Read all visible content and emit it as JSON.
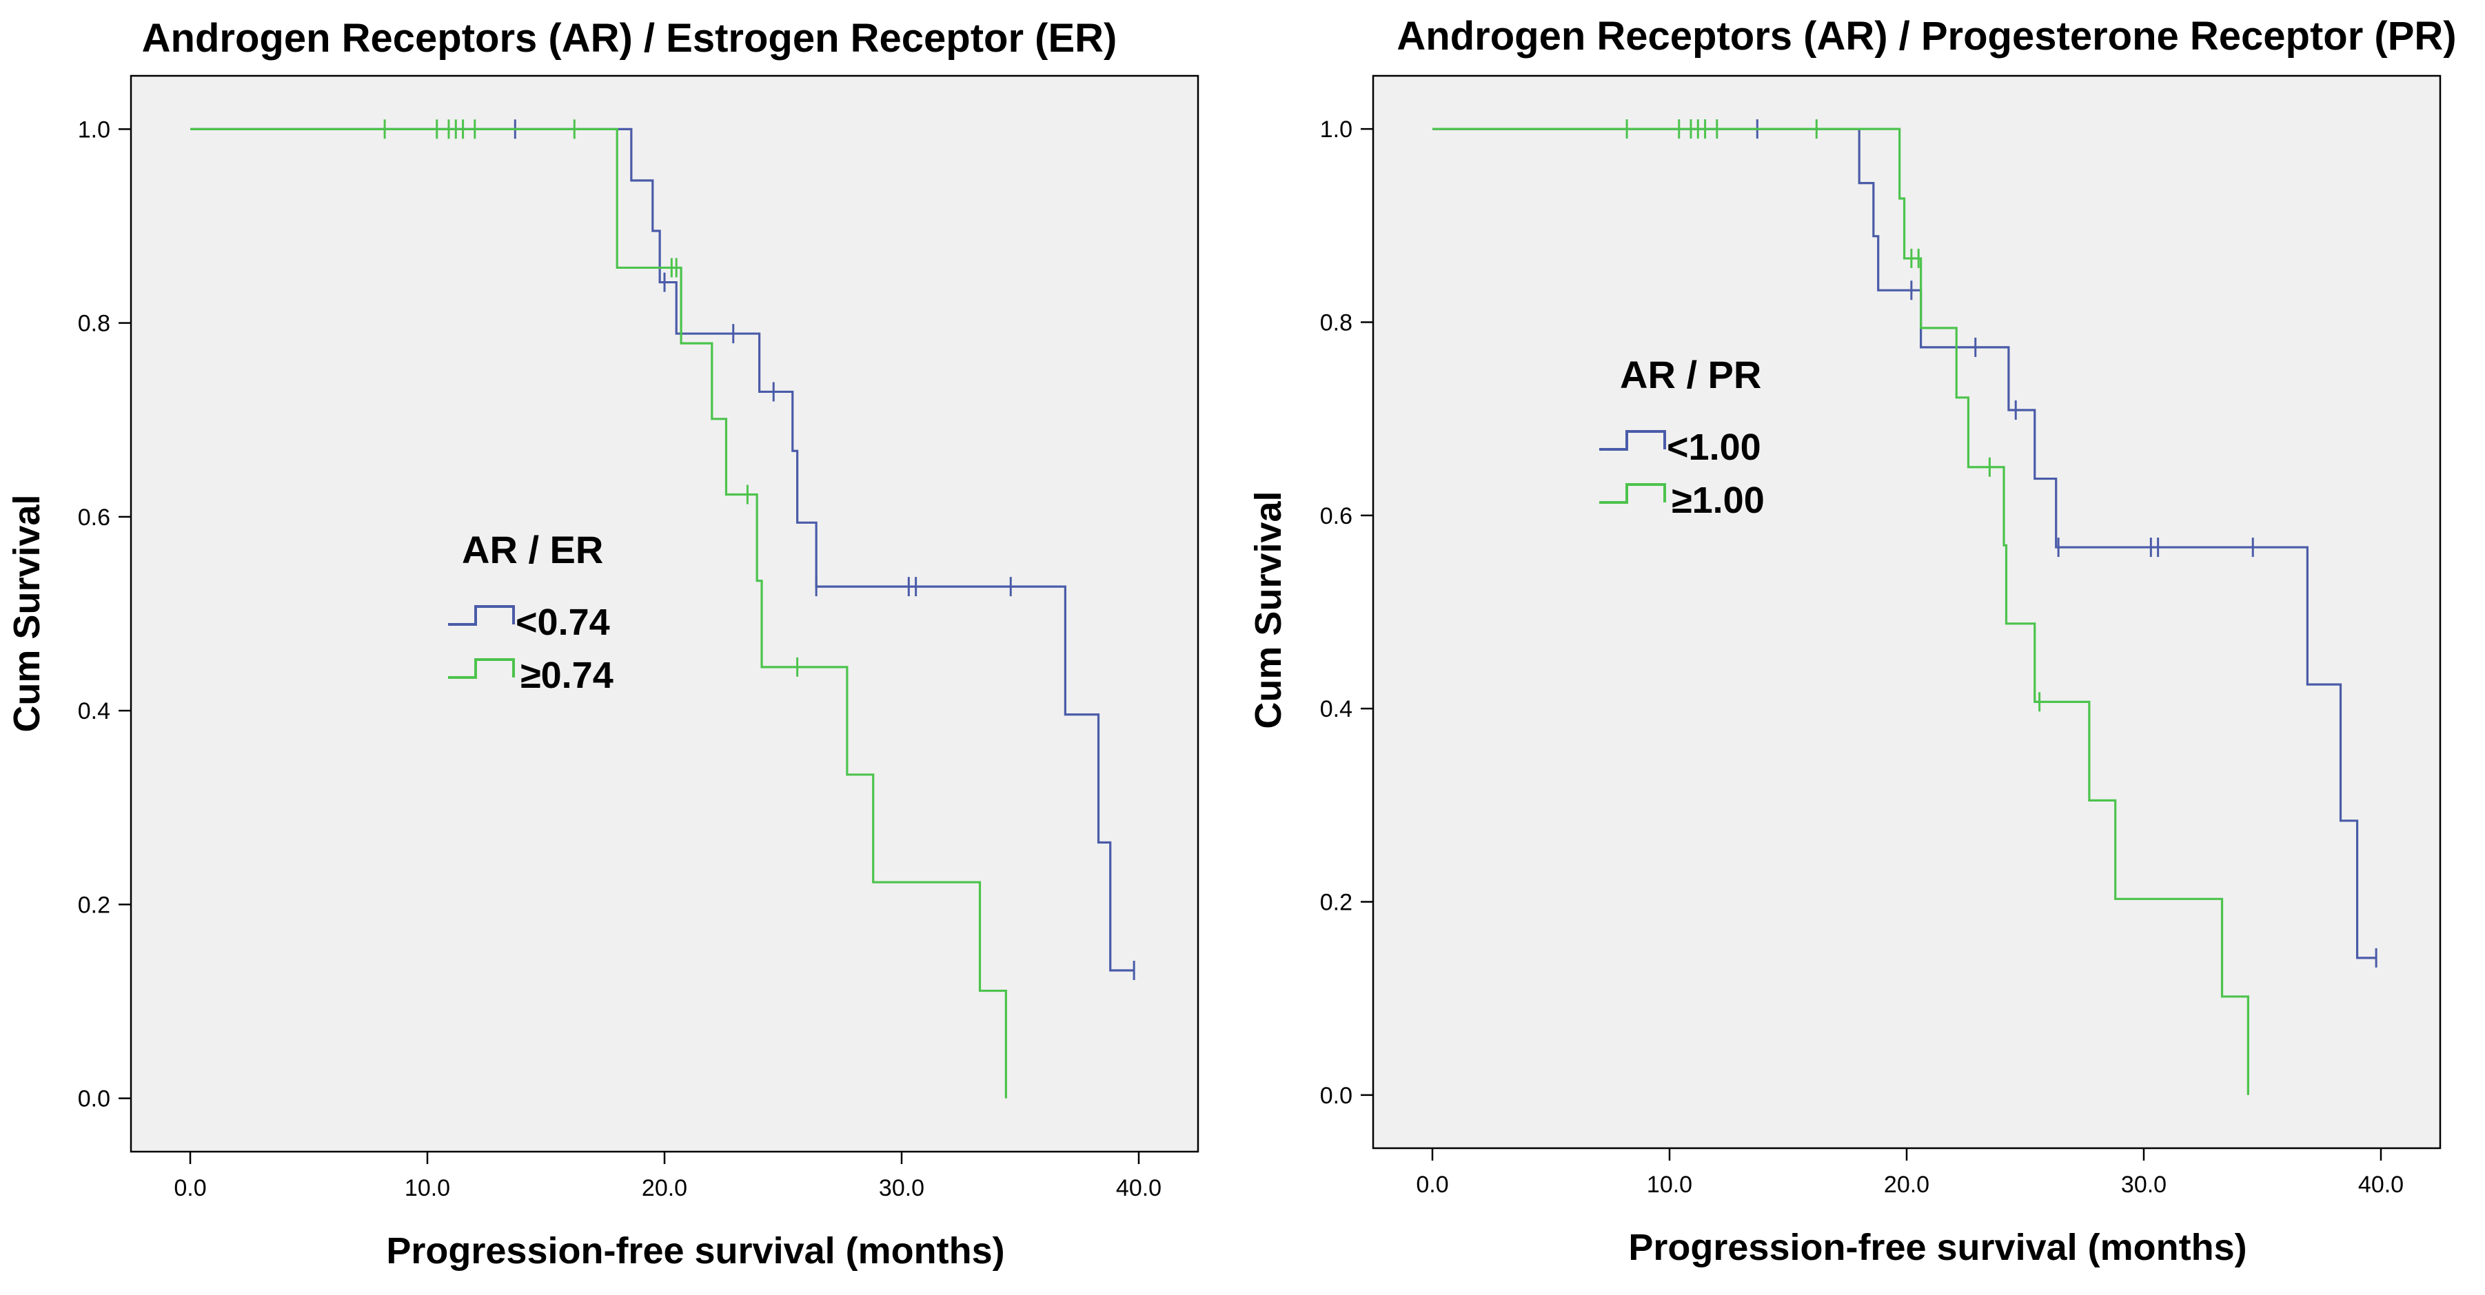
{
  "colors": {
    "series_a": "#4a5ba8",
    "series_b": "#4cc34c"
  },
  "chart_data": [
    {
      "type": "line",
      "subtype": "kaplan-meier-step",
      "title": "Androgen Receptors (AR) / Estrogen Receptor (ER)",
      "xlabel": "Progression-free survival (months)",
      "ylabel": "Cum Survival",
      "xlim": [
        -2.5,
        42.5
      ],
      "ylim": [
        -0.055,
        1.055
      ],
      "xticks": [
        0,
        10,
        20,
        30,
        40
      ],
      "xtick_labels": [
        "0.0",
        "10.0",
        "20.0",
        "30.0",
        "40.0"
      ],
      "yticks": [
        0,
        0.2,
        0.4,
        0.6,
        0.8,
        1.0
      ],
      "ytick_labels": [
        "0.0",
        "0.2",
        "0.4",
        "0.6",
        "0.8",
        "1.0"
      ],
      "legend_title": "AR / ER",
      "series": [
        {
          "name": "<0.74",
          "color_key": "series_a",
          "steps": [
            [
              0,
              1.0
            ],
            [
              18.6,
              0.947
            ],
            [
              19.5,
              0.895
            ],
            [
              19.8,
              0.842
            ],
            [
              20.5,
              0.789
            ],
            [
              24.0,
              0.729
            ],
            [
              25.4,
              0.668
            ],
            [
              25.6,
              0.594
            ],
            [
              26.4,
              0.528
            ],
            [
              36.9,
              0.396
            ],
            [
              38.3,
              0.264
            ],
            [
              38.8,
              0.132
            ],
            [
              39.8,
              0.132
            ]
          ],
          "censored": [
            [
              13.7,
              1.0
            ],
            [
              20.0,
              0.842
            ],
            [
              22.9,
              0.789
            ],
            [
              24.6,
              0.729
            ],
            [
              26.4,
              0.528
            ],
            [
              30.3,
              0.528
            ],
            [
              30.6,
              0.528
            ],
            [
              34.6,
              0.528
            ],
            [
              39.8,
              0.132
            ]
          ]
        },
        {
          "name": "≥0.74",
          "color_key": "series_b",
          "steps": [
            [
              0,
              1.0
            ],
            [
              18.0,
              0.857
            ],
            [
              20.7,
              0.779
            ],
            [
              22.0,
              0.701
            ],
            [
              22.6,
              0.623
            ],
            [
              23.9,
              0.534
            ],
            [
              24.1,
              0.445
            ],
            [
              27.7,
              0.334
            ],
            [
              28.8,
              0.223
            ],
            [
              33.3,
              0.111
            ],
            [
              34.4,
              0.0
            ]
          ],
          "censored": [
            [
              8.2,
              1.0
            ],
            [
              10.4,
              1.0
            ],
            [
              10.9,
              1.0
            ],
            [
              11.2,
              1.0
            ],
            [
              11.5,
              1.0
            ],
            [
              12.0,
              1.0
            ],
            [
              16.2,
              1.0
            ],
            [
              20.3,
              0.857
            ],
            [
              20.5,
              0.857
            ],
            [
              23.5,
              0.623
            ],
            [
              25.6,
              0.445
            ]
          ]
        }
      ]
    },
    {
      "type": "line",
      "subtype": "kaplan-meier-step",
      "title": "Androgen Receptors (AR) / Progesterone  Receptor (PR)",
      "xlabel": "Progression-free survival (months)",
      "ylabel": "Cum Survival",
      "xlim": [
        -2.5,
        42.5
      ],
      "ylim": [
        -0.055,
        1.055
      ],
      "xticks": [
        0,
        10,
        20,
        30,
        40
      ],
      "xtick_labels": [
        "0.0",
        "10.0",
        "20.0",
        "30.0",
        "40.0"
      ],
      "yticks": [
        0,
        0.2,
        0.4,
        0.6,
        0.8,
        1.0
      ],
      "ytick_labels": [
        "0.0",
        "0.2",
        "0.4",
        "0.6",
        "0.8",
        "1.0"
      ],
      "legend_title": "AR / PR",
      "series": [
        {
          "name": "<1.00",
          "color_key": "series_a",
          "steps": [
            [
              0,
              1.0
            ],
            [
              18.0,
              0.944
            ],
            [
              18.6,
              0.889
            ],
            [
              18.8,
              0.833
            ],
            [
              20.6,
              0.774
            ],
            [
              24.3,
              0.709
            ],
            [
              25.4,
              0.638
            ],
            [
              26.3,
              0.567
            ],
            [
              36.9,
              0.425
            ],
            [
              38.3,
              0.284
            ],
            [
              39.0,
              0.142
            ],
            [
              39.8,
              0.142
            ]
          ],
          "censored": [
            [
              13.7,
              1.0
            ],
            [
              20.2,
              0.833
            ],
            [
              22.9,
              0.774
            ],
            [
              24.6,
              0.709
            ],
            [
              26.4,
              0.567
            ],
            [
              30.3,
              0.567
            ],
            [
              30.6,
              0.567
            ],
            [
              34.6,
              0.567
            ],
            [
              39.8,
              0.142
            ]
          ]
        },
        {
          "name": "≥1.00",
          "color_key": "series_b",
          "steps": [
            [
              0,
              1.0
            ],
            [
              19.7,
              0.928
            ],
            [
              19.9,
              0.866
            ],
            [
              20.6,
              0.794
            ],
            [
              22.1,
              0.722
            ],
            [
              22.6,
              0.65
            ],
            [
              24.1,
              0.569
            ],
            [
              24.2,
              0.488
            ],
            [
              25.4,
              0.407
            ],
            [
              27.7,
              0.305
            ],
            [
              28.8,
              0.203
            ],
            [
              33.3,
              0.102
            ],
            [
              34.4,
              0.0
            ]
          ],
          "censored": [
            [
              8.2,
              1.0
            ],
            [
              10.4,
              1.0
            ],
            [
              10.9,
              1.0
            ],
            [
              11.2,
              1.0
            ],
            [
              11.5,
              1.0
            ],
            [
              12.0,
              1.0
            ],
            [
              16.2,
              1.0
            ],
            [
              20.2,
              0.866
            ],
            [
              20.5,
              0.866
            ],
            [
              23.5,
              0.65
            ],
            [
              25.6,
              0.407
            ]
          ]
        }
      ]
    }
  ]
}
